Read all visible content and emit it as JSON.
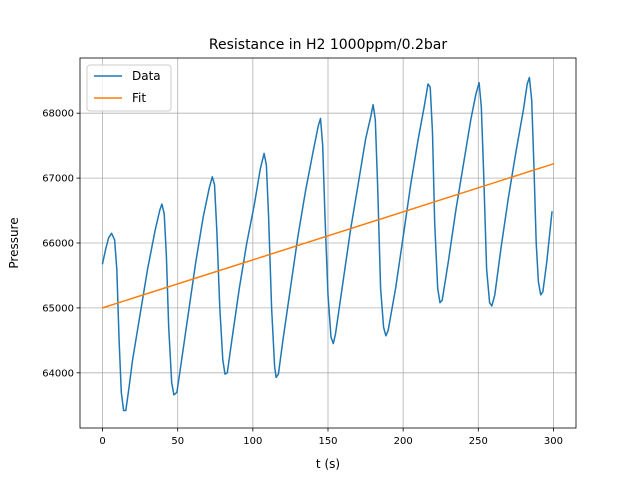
{
  "chart_data": {
    "type": "line",
    "title": "Resistance in H2 1000ppm/0.2bar",
    "xlabel": "t (s)",
    "ylabel": "Pressure",
    "xlim": [
      -15,
      315
    ],
    "ylim": [
      63150,
      68850
    ],
    "xticks": [
      0,
      50,
      100,
      150,
      200,
      250,
      300
    ],
    "yticks": [
      64000,
      65000,
      66000,
      67000,
      68000
    ],
    "grid": true,
    "legend_position": "upper-left",
    "series": [
      {
        "name": "Data",
        "color": "#1f77b4",
        "points": [
          [
            0,
            65680
          ],
          [
            2,
            65900
          ],
          [
            4,
            66080
          ],
          [
            6,
            66150
          ],
          [
            8,
            66050
          ],
          [
            9.5,
            65600
          ],
          [
            11,
            64500
          ],
          [
            12.5,
            63700
          ],
          [
            14,
            63420
          ],
          [
            15.5,
            63420
          ],
          [
            17.5,
            63750
          ],
          [
            20,
            64200
          ],
          [
            25,
            64900
          ],
          [
            30,
            65600
          ],
          [
            35,
            66200
          ],
          [
            38,
            66500
          ],
          [
            39.5,
            66600
          ],
          [
            41,
            66450
          ],
          [
            42.5,
            65800
          ],
          [
            44,
            64700
          ],
          [
            46,
            63850
          ],
          [
            47.5,
            63660
          ],
          [
            49.5,
            63700
          ],
          [
            52,
            64100
          ],
          [
            57,
            64900
          ],
          [
            62,
            65700
          ],
          [
            67,
            66400
          ],
          [
            71,
            66850
          ],
          [
            73,
            67020
          ],
          [
            74.5,
            66900
          ],
          [
            76,
            66200
          ],
          [
            78,
            65000
          ],
          [
            80,
            64200
          ],
          [
            81.5,
            63980
          ],
          [
            83,
            64000
          ],
          [
            86,
            64500
          ],
          [
            91,
            65300
          ],
          [
            96,
            66000
          ],
          [
            101,
            66600
          ],
          [
            105,
            67150
          ],
          [
            107.5,
            67380
          ],
          [
            109,
            67200
          ],
          [
            110.5,
            66400
          ],
          [
            112.5,
            65000
          ],
          [
            114.5,
            64100
          ],
          [
            115.5,
            63930
          ],
          [
            117,
            63980
          ],
          [
            120,
            64500
          ],
          [
            125,
            65300
          ],
          [
            130,
            66100
          ],
          [
            135,
            66800
          ],
          [
            140,
            67400
          ],
          [
            143.5,
            67800
          ],
          [
            145,
            67920
          ],
          [
            146.5,
            67500
          ],
          [
            148,
            66400
          ],
          [
            150,
            65200
          ],
          [
            152,
            64550
          ],
          [
            153.5,
            64450
          ],
          [
            155,
            64600
          ],
          [
            160,
            65400
          ],
          [
            165,
            66200
          ],
          [
            170,
            66900
          ],
          [
            175,
            67600
          ],
          [
            178.5,
            67950
          ],
          [
            180,
            68130
          ],
          [
            181.5,
            67900
          ],
          [
            183,
            66900
          ],
          [
            185,
            65300
          ],
          [
            187,
            64700
          ],
          [
            188.5,
            64570
          ],
          [
            190,
            64650
          ],
          [
            195,
            65300
          ],
          [
            200,
            66100
          ],
          [
            205,
            66900
          ],
          [
            210,
            67600
          ],
          [
            214,
            68100
          ],
          [
            216.5,
            68450
          ],
          [
            218,
            68400
          ],
          [
            219.5,
            67700
          ],
          [
            221,
            66300
          ],
          [
            223,
            65300
          ],
          [
            224.5,
            65080
          ],
          [
            226,
            65120
          ],
          [
            230,
            65700
          ],
          [
            235,
            66500
          ],
          [
            240,
            67200
          ],
          [
            245,
            67900
          ],
          [
            248.5,
            68300
          ],
          [
            250.5,
            68470
          ],
          [
            252,
            68100
          ],
          [
            253.5,
            67100
          ],
          [
            255.5,
            65600
          ],
          [
            257.5,
            65080
          ],
          [
            259,
            65030
          ],
          [
            261,
            65200
          ],
          [
            265,
            65900
          ],
          [
            270,
            66700
          ],
          [
            275,
            67400
          ],
          [
            280,
            68050
          ],
          [
            282.5,
            68450
          ],
          [
            284,
            68550
          ],
          [
            285.5,
            68200
          ],
          [
            287,
            67200
          ],
          [
            288.5,
            66000
          ],
          [
            290,
            65400
          ],
          [
            291.5,
            65200
          ],
          [
            293,
            65250
          ],
          [
            295.5,
            65700
          ],
          [
            299,
            66480
          ]
        ]
      },
      {
        "name": "Fit",
        "color": "#ff7f0e",
        "points": [
          [
            0,
            65000
          ],
          [
            300,
            67220
          ]
        ]
      }
    ]
  }
}
